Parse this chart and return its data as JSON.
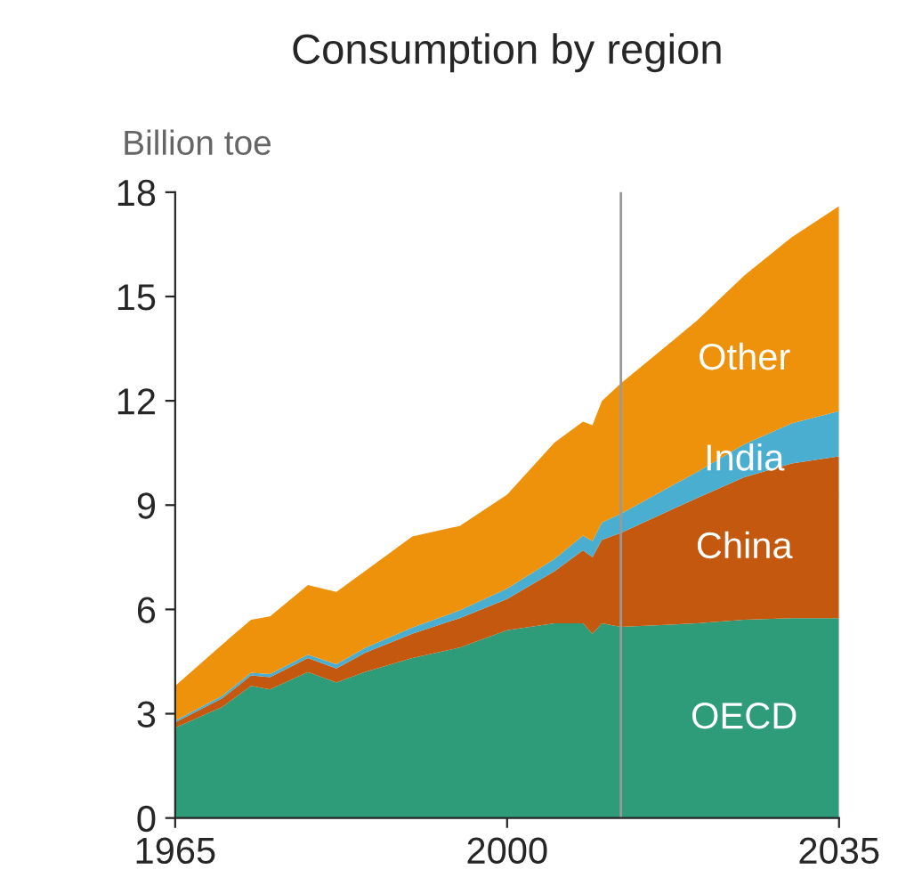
{
  "chart_data": {
    "type": "area",
    "stacked": true,
    "title": "Consumption by region",
    "ylabel": "Billion toe",
    "x": [
      1965,
      1970,
      1973,
      1975,
      1979,
      1982,
      1985,
      1990,
      1995,
      2000,
      2005,
      2008,
      2009,
      2010,
      2012,
      2020,
      2025,
      2030,
      2035
    ],
    "series": [
      {
        "name": "OECD",
        "color": "#2e9c78",
        "values": [
          2.6,
          3.2,
          3.8,
          3.7,
          4.2,
          3.9,
          4.2,
          4.6,
          4.9,
          5.4,
          5.6,
          5.6,
          5.3,
          5.6,
          5.5,
          5.6,
          5.7,
          5.75,
          5.75
        ]
      },
      {
        "name": "China",
        "color": "#c4580f",
        "values": [
          0.15,
          0.25,
          0.3,
          0.35,
          0.4,
          0.4,
          0.55,
          0.7,
          0.85,
          0.9,
          1.5,
          2.1,
          2.2,
          2.4,
          2.7,
          3.6,
          4.1,
          4.45,
          4.65
        ]
      },
      {
        "name": "India",
        "color": "#4aaed0",
        "values": [
          0.05,
          0.07,
          0.08,
          0.09,
          0.1,
          0.12,
          0.14,
          0.18,
          0.22,
          0.3,
          0.35,
          0.42,
          0.46,
          0.5,
          0.55,
          0.75,
          0.95,
          1.15,
          1.3
        ]
      },
      {
        "name": "Other",
        "color": "#ee920c",
        "values": [
          1.0,
          1.48,
          1.52,
          1.66,
          2.0,
          2.08,
          2.21,
          2.62,
          2.43,
          2.7,
          3.35,
          3.28,
          3.34,
          3.5,
          3.75,
          4.35,
          4.85,
          5.35,
          5.9
        ]
      }
    ],
    "xlim": [
      1965,
      2035
    ],
    "xticks": [
      1965,
      2000,
      2035
    ],
    "ylim": [
      0,
      18
    ],
    "yticks": [
      0,
      3,
      6,
      9,
      12,
      15,
      18
    ],
    "ref_lines": [
      {
        "axis": "x",
        "value": 2012,
        "color": "#999999"
      }
    ],
    "grid": false,
    "legend": false
  }
}
